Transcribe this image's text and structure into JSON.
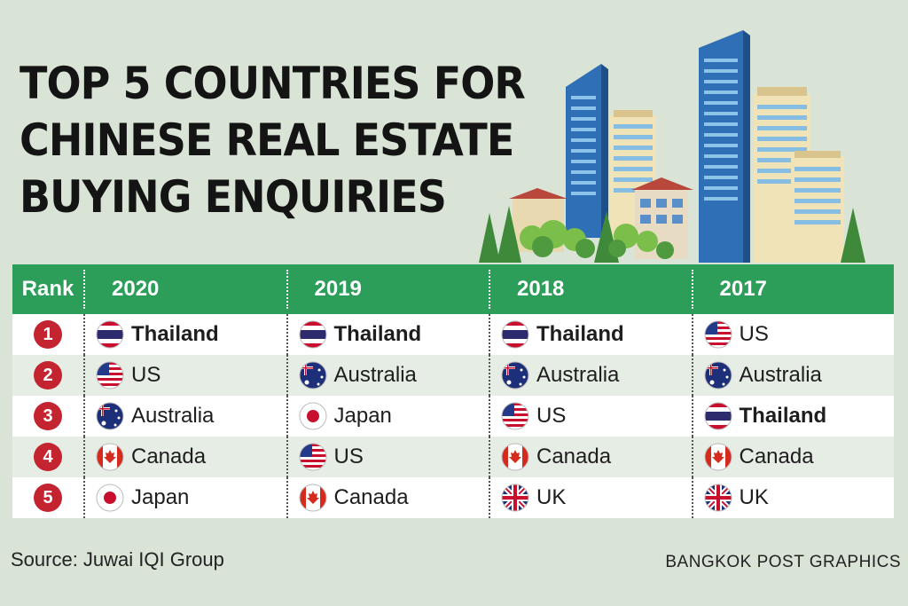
{
  "title_lines": [
    "TOP 5 COUNTRIES FOR",
    "CHINESE REAL ESTATE",
    "BUYING ENQUIRIES"
  ],
  "table": {
    "rank_header": "Rank",
    "years": [
      "2020",
      "2019",
      "2018",
      "2017"
    ],
    "rows": [
      {
        "rank": "1",
        "entries": [
          {
            "country": "Thailand",
            "flag": "thailand-flag-icon",
            "bold": true
          },
          {
            "country": "Thailand",
            "flag": "thailand-flag-icon",
            "bold": true
          },
          {
            "country": "Thailand",
            "flag": "thailand-flag-icon",
            "bold": true
          },
          {
            "country": "US",
            "flag": "us-flag-icon",
            "bold": false
          }
        ]
      },
      {
        "rank": "2",
        "entries": [
          {
            "country": "US",
            "flag": "us-flag-icon",
            "bold": false
          },
          {
            "country": "Australia",
            "flag": "australia-flag-icon",
            "bold": false
          },
          {
            "country": "Australia",
            "flag": "australia-flag-icon",
            "bold": false
          },
          {
            "country": "Australia",
            "flag": "australia-flag-icon",
            "bold": false
          }
        ]
      },
      {
        "rank": "3",
        "entries": [
          {
            "country": "Australia",
            "flag": "australia-flag-icon",
            "bold": false
          },
          {
            "country": "Japan",
            "flag": "japan-flag-icon",
            "bold": false
          },
          {
            "country": "US",
            "flag": "us-flag-icon",
            "bold": false
          },
          {
            "country": "Thailand",
            "flag": "thailand-flag-icon",
            "bold": true
          }
        ]
      },
      {
        "rank": "4",
        "entries": [
          {
            "country": "Canada",
            "flag": "canada-flag-icon",
            "bold": false
          },
          {
            "country": "US",
            "flag": "us-flag-icon",
            "bold": false
          },
          {
            "country": "Canada",
            "flag": "canada-flag-icon",
            "bold": false
          },
          {
            "country": "Canada",
            "flag": "canada-flag-icon",
            "bold": false
          }
        ]
      },
      {
        "rank": "5",
        "entries": [
          {
            "country": "Japan",
            "flag": "japan-flag-icon",
            "bold": false
          },
          {
            "country": "Canada",
            "flag": "canada-flag-icon",
            "bold": false
          },
          {
            "country": "UK",
            "flag": "uk-flag-icon",
            "bold": false
          },
          {
            "country": "UK",
            "flag": "uk-flag-icon",
            "bold": false
          }
        ]
      }
    ]
  },
  "source": "Source: Juwai IQI Group",
  "credit": "BANGKOK POST GRAPHICS",
  "colors": {
    "header_green": "#2c9e5a",
    "rank_red": "#c4242f",
    "background": "#d9e4d7"
  }
}
